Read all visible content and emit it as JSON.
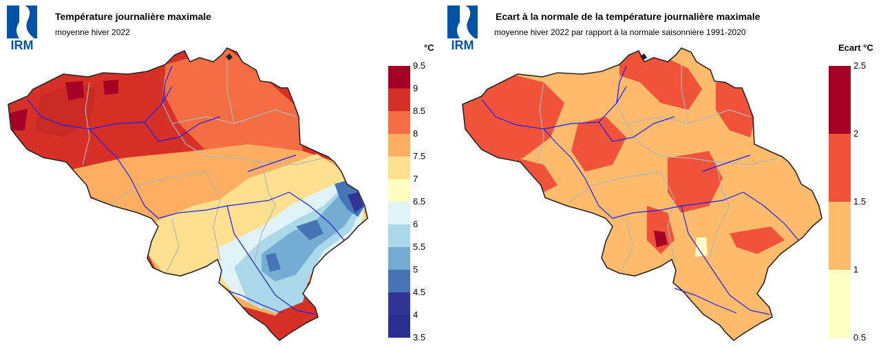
{
  "logo": {
    "text": "IRM",
    "color": "#0054a6"
  },
  "left": {
    "title": "Température journalière maximale",
    "subtitle": "moyenne hiver 2022",
    "unit": "°C",
    "legend": {
      "ticks": [
        "9.5",
        "9",
        "8.5",
        "8",
        "7.5",
        "7",
        "6.5",
        "6",
        "5.5",
        "5",
        "4.5",
        "4",
        "3.5"
      ],
      "colors": [
        "#a50026",
        "#d73027",
        "#f46d43",
        "#fdae61",
        "#fee090",
        "#ffffbf",
        "#e0f3f8",
        "#abd9e9",
        "#74add1",
        "#4575b4",
        "#313695",
        "#2b2e8f"
      ]
    }
  },
  "right": {
    "title": "Ecart à la normale de la température journalière maximale",
    "subtitle": "moyenne hiver 2022 par rapport à la normale saisonnière 1991-2020",
    "unit": "Ecart °C",
    "legend": {
      "ticks": [
        "2.5",
        "2",
        "1.5",
        "1",
        "0.5"
      ],
      "colors": [
        "#a50026",
        "#f0533a",
        "#fdbb6b",
        "#ffffc4"
      ]
    }
  },
  "colors": {
    "border": "#222222",
    "rivers": "#1a1aff",
    "provinces": "#b5b5b5"
  }
}
